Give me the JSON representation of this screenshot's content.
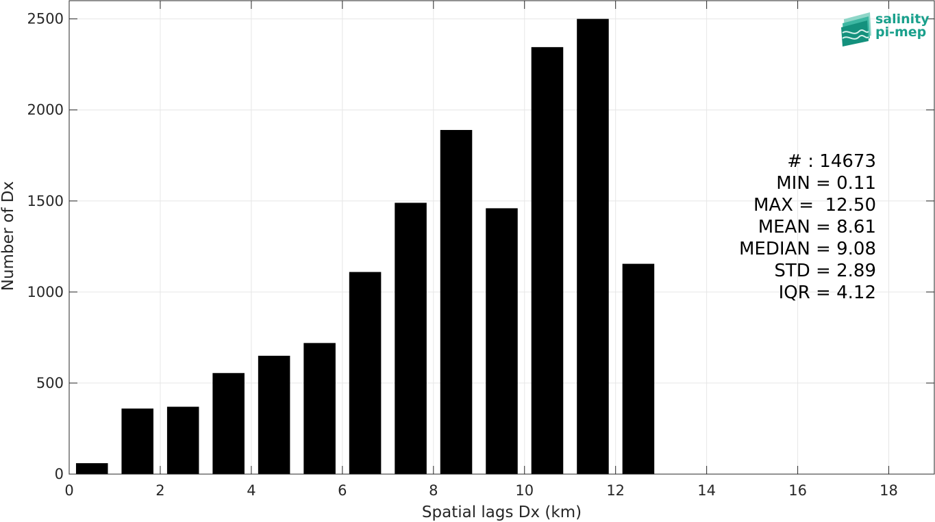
{
  "chart_data": {
    "type": "bar",
    "title": "",
    "xlabel": "Spatial lags Dx (km)",
    "ylabel": "Number of Dx",
    "xlim": [
      0,
      19
    ],
    "ylim": [
      0,
      2600
    ],
    "xticks": [
      0,
      2,
      4,
      6,
      8,
      10,
      12,
      14,
      16,
      18
    ],
    "yticks": [
      0,
      500,
      1000,
      1500,
      2000,
      2500
    ],
    "grid": true,
    "bar_width": 0.7,
    "x": [
      0.5,
      1.5,
      2.5,
      3.5,
      4.5,
      5.5,
      6.5,
      7.5,
      8.5,
      9.5,
      10.5,
      11.5,
      12.5
    ],
    "values": [
      60,
      360,
      370,
      555,
      650,
      720,
      1110,
      1490,
      1890,
      1460,
      2345,
      2500,
      1155
    ],
    "bar_color": "#000000",
    "grid_color": "#e6e6e6",
    "stats": [
      "# : 14673",
      "MIN = 0.11",
      "MAX =  12.50",
      "MEAN = 8.61",
      "MEDIAN = 9.08",
      "STD = 2.89",
      "IQR = 4.12"
    ]
  },
  "logo": {
    "line1": "salinity",
    "line2": "pi-mep",
    "color": "#1aa08c",
    "icon": "wave-layers-icon"
  }
}
